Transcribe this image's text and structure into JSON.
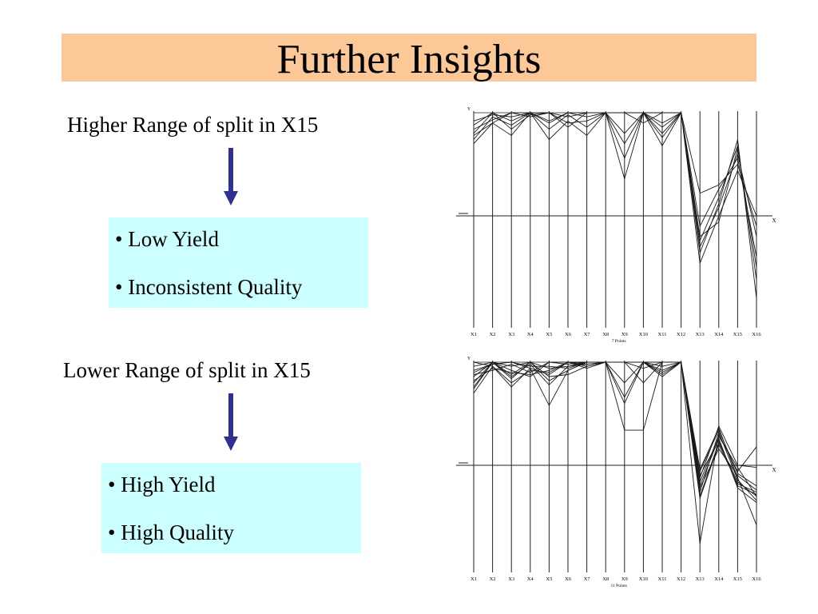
{
  "title": "Further Insights",
  "sections": [
    {
      "heading": "Higher Range of split in X15",
      "bullets": [
        "• Low Yield",
        "• Inconsistent Quality"
      ]
    },
    {
      "heading": "Lower Range of split in X15",
      "bullets": [
        "• High Yield",
        "• High Quality"
      ]
    }
  ],
  "colors": {
    "title_bg": "#fdc898",
    "box_bg": "#ccffff",
    "arrow": "#2e3192"
  },
  "chart_data": [
    {
      "type": "line",
      "subtype": "parallel-coordinates",
      "categories": [
        "X1",
        "X2",
        "X3",
        "X4",
        "X5",
        "X6",
        "X7",
        "X8",
        "X9",
        "X10",
        "X11",
        "X12",
        "X13",
        "X14",
        "X15",
        "X16"
      ],
      "xlabel": "7 Points",
      "axis_labels": {
        "y": "Y",
        "x": "X"
      },
      "ylim": [
        -1,
        1
      ],
      "series": [
        {
          "values": [
            0.7,
            0.9,
            0.78,
            1.0,
            0.74,
            0.92,
            0.78,
            1.0,
            0.36,
            1.0,
            0.68,
            1.0,
            -0.24,
            0.18,
            0.68,
            -0.62
          ]
        },
        {
          "values": [
            0.74,
            0.96,
            0.88,
            1.0,
            0.84,
            0.98,
            0.86,
            1.0,
            0.56,
            1.0,
            0.8,
            1.0,
            -0.3,
            0.08,
            0.6,
            -0.2
          ]
        },
        {
          "values": [
            0.8,
            1.0,
            0.92,
            1.0,
            1.0,
            0.86,
            1.0,
            1.0,
            0.7,
            1.0,
            0.9,
            1.0,
            -0.1,
            0.26,
            0.56,
            -0.4
          ]
        },
        {
          "values": [
            0.84,
            0.93,
            1.0,
            1.0,
            0.9,
            1.0,
            1.0,
            1.0,
            1.0,
            1.0,
            1.0,
            1.0,
            -0.46,
            0.0,
            0.44,
            0.0
          ]
        },
        {
          "values": [
            0.88,
            1.0,
            0.84,
            0.98,
            1.0,
            0.96,
            1.0,
            1.0,
            1.0,
            0.9,
            1.0,
            1.0,
            -0.36,
            0.12,
            0.74,
            -0.8
          ]
        },
        {
          "values": [
            0.92,
            0.98,
            0.96,
            1.0,
            0.92,
            1.0,
            0.96,
            1.0,
            1.0,
            1.0,
            0.76,
            1.0,
            0.22,
            0.3,
            0.5,
            -0.1
          ]
        },
        {
          "values": [
            0.78,
            0.9,
            1.0,
            0.96,
            1.0,
            0.9,
            0.92,
            1.0,
            0.8,
            1.0,
            0.86,
            1.0,
            -0.2,
            -0.06,
            0.66,
            -0.5
          ]
        }
      ]
    },
    {
      "type": "line",
      "subtype": "parallel-coordinates",
      "categories": [
        "X1",
        "X2",
        "X3",
        "X4",
        "X5",
        "X6",
        "X7",
        "X8",
        "X9",
        "X10",
        "X11",
        "X12",
        "X13",
        "X14",
        "X15",
        "X16"
      ],
      "xlabel": "11 Points",
      "axis_labels": {
        "y": "Y",
        "x": "X"
      },
      "ylim": [
        -1,
        1
      ],
      "series": [
        {
          "values": [
            0.7,
            0.96,
            0.76,
            0.94,
            0.58,
            0.92,
            1.0,
            1.0,
            0.34,
            0.34,
            1.0,
            1.0,
            -0.32,
            0.2,
            -0.18,
            -0.26
          ]
        },
        {
          "values": [
            0.76,
            1.0,
            0.86,
            0.98,
            0.78,
            0.96,
            0.98,
            1.0,
            0.6,
            1.0,
            0.9,
            1.0,
            -0.16,
            0.28,
            -0.02,
            -0.3
          ]
        },
        {
          "values": [
            0.82,
            0.94,
            0.9,
            0.88,
            0.92,
            1.0,
            1.0,
            1.0,
            1.0,
            1.0,
            1.0,
            1.0,
            -0.04,
            0.36,
            -0.12,
            -0.58
          ]
        },
        {
          "values": [
            0.86,
            1.0,
            0.96,
            1.0,
            0.86,
            0.88,
            0.96,
            1.0,
            1.0,
            1.0,
            0.96,
            1.0,
            -0.22,
            0.16,
            -0.1,
            -0.24
          ]
        },
        {
          "values": [
            0.92,
            0.98,
            1.0,
            0.96,
            0.96,
            0.94,
            1.0,
            1.0,
            1.0,
            0.8,
            1.0,
            1.0,
            -0.76,
            0.3,
            -0.06,
            0.18
          ]
        },
        {
          "values": [
            0.96,
            1.0,
            0.92,
            0.86,
            1.0,
            0.98,
            1.0,
            1.0,
            1.0,
            1.0,
            0.88,
            1.0,
            -0.1,
            0.24,
            -0.2,
            -0.28
          ]
        },
        {
          "values": [
            1.0,
            0.96,
            0.8,
            0.92,
            0.9,
            1.0,
            0.96,
            1.0,
            0.66,
            1.0,
            1.0,
            1.0,
            -0.26,
            0.32,
            -0.14,
            -0.34
          ]
        },
        {
          "values": [
            0.74,
            1.0,
            0.88,
            1.0,
            0.82,
            0.92,
            1.0,
            1.0,
            1.0,
            1.0,
            0.92,
            1.0,
            -0.12,
            0.38,
            0.0,
            -0.02
          ]
        },
        {
          "values": [
            0.88,
            0.92,
            0.98,
            0.9,
            1.0,
            1.0,
            0.94,
            1.0,
            1.0,
            0.94,
            1.0,
            1.0,
            -0.3,
            0.22,
            -0.16,
            -0.3
          ]
        },
        {
          "values": [
            0.8,
            1.0,
            0.84,
            1.0,
            0.94,
            0.96,
            1.0,
            1.0,
            1.0,
            1.0,
            0.86,
            1.0,
            -0.06,
            0.34,
            -0.08,
            -0.2
          ]
        },
        {
          "values": [
            0.9,
            0.98,
            1.0,
            0.94,
            0.88,
            1.0,
            0.98,
            1.0,
            0.8,
            1.0,
            1.0,
            1.0,
            -0.2,
            0.26,
            -0.22,
            -0.36
          ]
        }
      ]
    }
  ]
}
